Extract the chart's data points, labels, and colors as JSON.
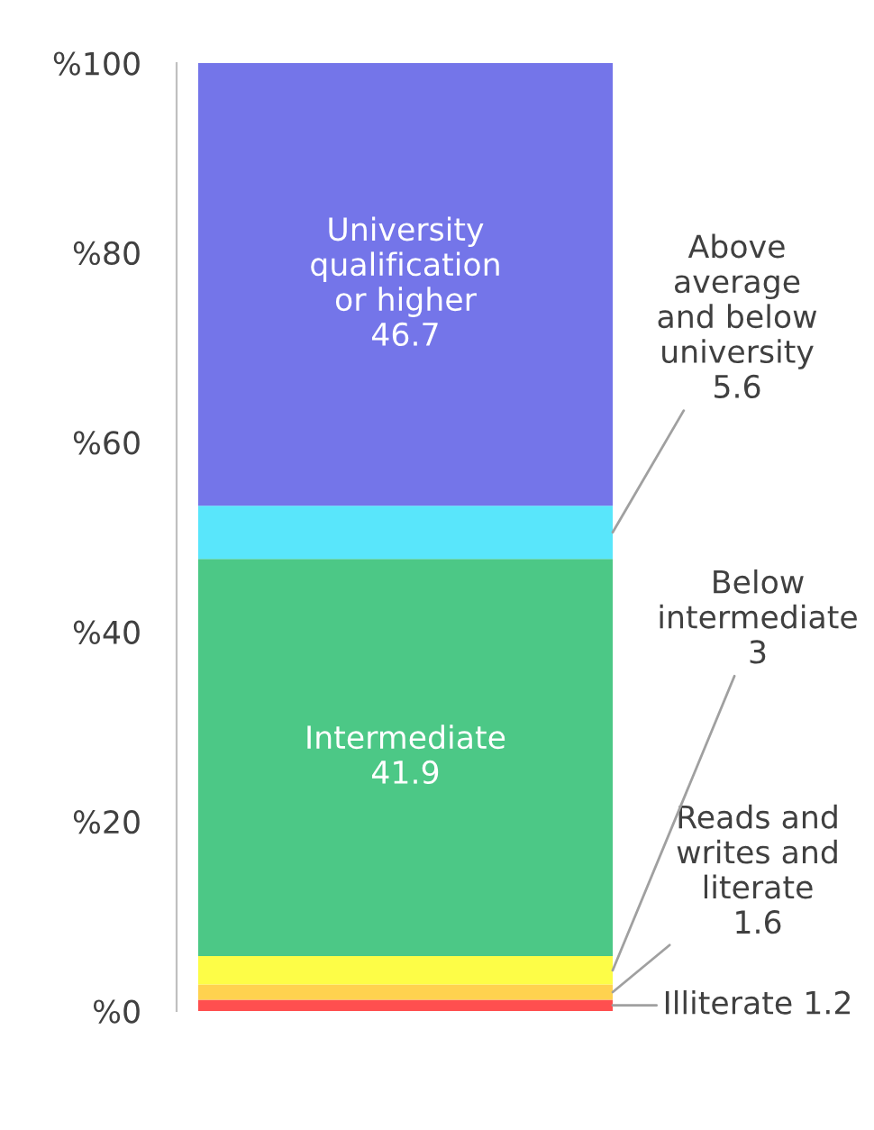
{
  "chart_data": {
    "type": "bar",
    "stacked": true,
    "categories": [
      null
    ],
    "series": [
      {
        "color": "#ff4f4f",
        "values": [
          1.2
        ]
      },
      {
        "color": "#ffd24f",
        "values": [
          1.6
        ]
      },
      {
        "color": "#fdfd47",
        "values": [
          3
        ]
      },
      {
        "name": "Intermediate",
        "color": "#4cc886",
        "values": [
          41.9
        ],
        "value_labels": [
          "41.9"
        ]
      },
      {
        "color": "#59e6fb",
        "values": [
          5.6
        ]
      },
      {
        "name": "University qualification or higher",
        "color": "#7475e9",
        "values": [
          46.7
        ],
        "value_labels": [
          "46.7"
        ]
      }
    ],
    "annotations": [
      "Illiterate 1.2",
      "Reads and writes and literate 1.6",
      "Below intermediate 3",
      "Above average and below university 5.6"
    ],
    "ylim": [
      0,
      100
    ],
    "yticks": [
      {
        "value": 0,
        "label": "%0"
      },
      {
        "value": 20,
        "label": "%20"
      },
      {
        "value": 40,
        "label": "%40"
      },
      {
        "value": 60,
        "label": "%60"
      },
      {
        "value": 80,
        "label": "%80"
      },
      {
        "value": 100,
        "label": "%100"
      }
    ],
    "tick_labels": "y",
    "grid": false,
    "legend": false
  }
}
